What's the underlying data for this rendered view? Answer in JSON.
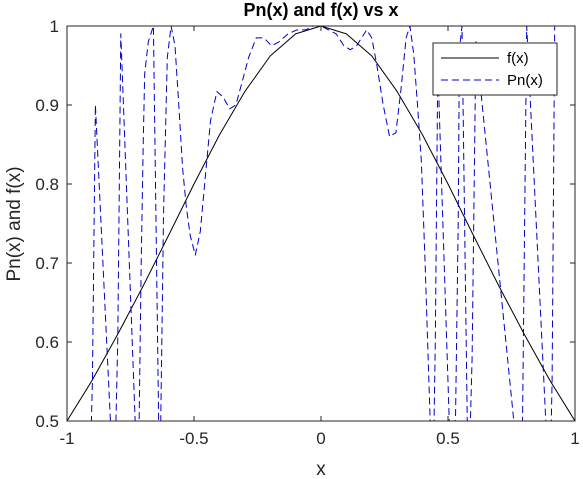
{
  "chart_data": {
    "type": "line",
    "title": "Pn(x) and f(x) vs x",
    "xlabel": "x",
    "ylabel": "Pn(x) and f(x)",
    "xlim": [
      -1,
      1
    ],
    "ylim": [
      0.5,
      1
    ],
    "xticks": [
      -1,
      -0.5,
      0,
      0.5,
      1
    ],
    "xtick_labels": [
      "-1",
      "-0.5",
      "0",
      "0.5",
      "1"
    ],
    "yticks": [
      0.5,
      0.6,
      0.7,
      0.8,
      0.9,
      1
    ],
    "ytick_labels": [
      "0.5",
      "0.6",
      "0.7",
      "0.8",
      "0.9",
      "1"
    ],
    "grid": false,
    "legend_position": "top-right",
    "series": [
      {
        "name": "f(x)",
        "style": "solid",
        "color": "#000000",
        "x": [
          -1,
          -0.9,
          -0.8,
          -0.7,
          -0.6,
          -0.5,
          -0.4,
          -0.3,
          -0.2,
          -0.1,
          0,
          0.1,
          0.2,
          0.3,
          0.4,
          0.5,
          0.6,
          0.7,
          0.8,
          0.9,
          1
        ],
        "y": [
          0.5,
          0.552,
          0.61,
          0.671,
          0.735,
          0.8,
          0.862,
          0.917,
          0.962,
          0.99,
          1.0,
          0.99,
          0.962,
          0.917,
          0.862,
          0.8,
          0.735,
          0.671,
          0.61,
          0.552,
          0.5
        ]
      },
      {
        "name": "Pn(x)",
        "style": "dashed",
        "color": "#0000cc",
        "x": [
          -0.912,
          -0.9,
          -0.888,
          -0.814,
          -0.8,
          -0.788,
          -0.72,
          -0.708,
          -0.7,
          -0.694,
          -0.68,
          -0.66,
          -0.635,
          -0.62,
          -0.605,
          -0.59,
          -0.575,
          -0.56,
          -0.545,
          -0.53,
          -0.515,
          -0.495,
          -0.475,
          -0.455,
          -0.435,
          -0.41,
          -0.385,
          -0.36,
          -0.335,
          -0.31,
          -0.285,
          -0.255,
          -0.225,
          -0.195,
          -0.165,
          -0.13,
          -0.095,
          -0.06,
          -0.03,
          0,
          0.03,
          0.06,
          0.09,
          0.115,
          0.14,
          0.16,
          0.18,
          0.2,
          0.22,
          0.245,
          0.27,
          0.295,
          0.315,
          0.335,
          0.35,
          0.365,
          0.38,
          0.395,
          0.41,
          0.425,
          0.44,
          0.45,
          0.46,
          0.515,
          0.53,
          0.54,
          0.545,
          0.555,
          0.58,
          0.595,
          0.61,
          0.79,
          0.8,
          0.81,
          0.9,
          0.91,
          0.92
        ],
        "y": [
          0.4,
          0.55,
          0.9,
          0.4,
          0.605,
          0.99,
          0.4,
          0.7,
          0.85,
          0.94,
          0.98,
          1.0,
          0.4,
          0.76,
          0.96,
          1.0,
          0.975,
          0.9,
          0.82,
          0.77,
          0.735,
          0.71,
          0.74,
          0.81,
          0.88,
          0.917,
          0.91,
          0.895,
          0.9,
          0.93,
          0.96,
          0.985,
          0.985,
          0.975,
          0.98,
          0.99,
          0.995,
          0.995,
          1.0,
          1.0,
          0.995,
          0.99,
          0.975,
          0.97,
          0.975,
          0.985,
          0.995,
          0.985,
          0.95,
          0.9,
          0.86,
          0.865,
          0.92,
          0.985,
          1.0,
          0.965,
          0.9,
          0.83,
          0.7,
          0.55,
          0.4,
          0.6,
          0.95,
          0.4,
          0.51,
          0.75,
          0.97,
          1.0,
          0.4,
          0.58,
          0.98,
          0.4,
          0.7,
          1.0,
          0.4,
          0.55,
          1.0
        ]
      }
    ]
  }
}
